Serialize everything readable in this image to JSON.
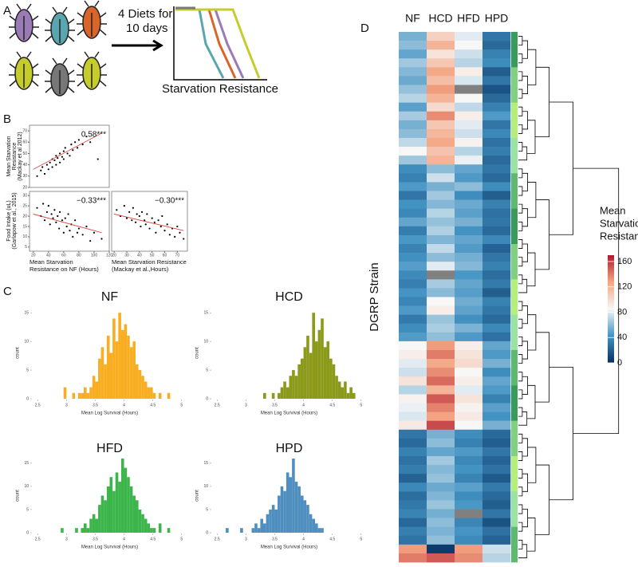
{
  "panel_labels": [
    "A",
    "B",
    "C",
    "D"
  ],
  "panel_a": {
    "diet_text": [
      "4 Diets for",
      "10 days"
    ],
    "curve_label": "Starvation Resistance"
  },
  "chart_data": [
    {
      "type": "scatter",
      "ylabel": [
        "Mean Starvation",
        "Resistance",
        "(Mackay et al 2012)"
      ],
      "annotation": "0.58***",
      "xlim": [
        15,
        120
      ],
      "ylim": [
        20,
        75
      ],
      "yticks": [
        20,
        30,
        40,
        50,
        60,
        70
      ],
      "x": [
        25,
        30,
        32,
        35,
        38,
        40,
        42,
        45,
        45,
        48,
        50,
        50,
        52,
        55,
        55,
        58,
        60,
        60,
        62,
        65,
        68,
        70,
        72,
        75,
        78,
        80,
        85,
        90,
        95,
        105
      ],
      "y": [
        30,
        35,
        38,
        32,
        40,
        36,
        42,
        45,
        38,
        44,
        40,
        48,
        46,
        50,
        42,
        47,
        52,
        45,
        55,
        50,
        48,
        58,
        53,
        60,
        55,
        62,
        58,
        65,
        60,
        45
      ],
      "fit": {
        "x": [
          20,
          110
        ],
        "y": [
          36,
          68
        ]
      },
      "color": "#000000",
      "fit_color": "#e0302a"
    },
    {
      "type": "scatter",
      "ylabel": [
        "Food Intake (uL)",
        "(Garlapow et al., 2015)"
      ],
      "xlabel": [
        "Mean Starvation",
        "Resistance on NF (Hours)"
      ],
      "annotation": "−0.33***",
      "xlim": [
        15,
        120
      ],
      "ylim": [
        3,
        32
      ],
      "yticks": [
        5,
        10,
        15,
        20,
        25,
        30
      ],
      "xticks": [
        20,
        40,
        60,
        80,
        100,
        120
      ],
      "x": [
        25,
        30,
        33,
        35,
        38,
        40,
        42,
        44,
        46,
        48,
        50,
        52,
        54,
        55,
        58,
        60,
        62,
        64,
        66,
        68,
        70,
        72,
        75,
        78,
        80,
        85,
        90,
        95,
        100,
        110
      ],
      "y": [
        24,
        20,
        26,
        18,
        22,
        25,
        16,
        21,
        19,
        23,
        17,
        20,
        14,
        22,
        18,
        12,
        19,
        15,
        21,
        13,
        16,
        10,
        18,
        12,
        14,
        11,
        15,
        8,
        12,
        9
      ],
      "fit": {
        "x": [
          20,
          110
        ],
        "y": [
          21,
          12
        ]
      },
      "color": "#000000",
      "fit_color": "#e0302a"
    },
    {
      "type": "scatter",
      "xlabel": [
        "Mean Starvation Resistance",
        "(Mackay et al.,Hours)"
      ],
      "annotation": "−0.30***",
      "xlim": [
        18,
        78
      ],
      "ylim": [
        3,
        32
      ],
      "xticks": [
        20,
        30,
        40,
        50,
        60,
        70
      ],
      "x": [
        22,
        25,
        28,
        30,
        32,
        34,
        35,
        37,
        38,
        40,
        41,
        42,
        44,
        45,
        46,
        48,
        50,
        52,
        53,
        55,
        57,
        58,
        60,
        62,
        64,
        66,
        68,
        70,
        72,
        75
      ],
      "y": [
        23,
        20,
        25,
        19,
        22,
        18,
        24,
        17,
        21,
        20,
        15,
        22,
        18,
        16,
        21,
        14,
        19,
        17,
        12,
        18,
        15,
        20,
        13,
        16,
        11,
        14,
        10,
        15,
        12,
        9
      ],
      "fit": {
        "x": [
          20,
          75
        ],
        "y": [
          21,
          13
        ]
      },
      "color": "#000000",
      "fit_color": "#e0302a"
    },
    {
      "type": "histogram",
      "title": "NF",
      "xlabel": "Mean Log Survival (Hours)",
      "ylabel": "count",
      "color": "#f9ae22",
      "xlim": [
        2.4,
        5.1
      ],
      "ylim": [
        0,
        16
      ],
      "xticks": [
        2.5,
        3.0,
        3.5,
        4.0,
        4.5,
        5.0
      ],
      "yticks": [
        0,
        5,
        10,
        15
      ],
      "bins": [
        2.5,
        2.55,
        2.6,
        2.65,
        2.7,
        2.75,
        2.8,
        2.85,
        2.9,
        2.95,
        3.0,
        3.05,
        3.1,
        3.15,
        3.2,
        3.25,
        3.3,
        3.35,
        3.4,
        3.45,
        3.5,
        3.55,
        3.6,
        3.65,
        3.7,
        3.75,
        3.8,
        3.85,
        3.9,
        3.95,
        4.0,
        4.05,
        4.1,
        4.15,
        4.2,
        4.25,
        4.3,
        4.35,
        4.4,
        4.45,
        4.5,
        4.55,
        4.6,
        4.65,
        4.7,
        4.75,
        4.8,
        4.85,
        4.9,
        4.95,
        5.0
      ],
      "counts": [
        0,
        0,
        0,
        0,
        0,
        0,
        0,
        0,
        0,
        2,
        0,
        0,
        1,
        0,
        1,
        1,
        2,
        1,
        2,
        4,
        3,
        7,
        9,
        6,
        11,
        8,
        14,
        10,
        15,
        12,
        13,
        11,
        9,
        10,
        6,
        5,
        4,
        3,
        2,
        2,
        1,
        0,
        1,
        0,
        0,
        1,
        0,
        0,
        0,
        0
      ]
    },
    {
      "type": "histogram",
      "title": "HCD",
      "xlabel": "Mean Log Survival (Hours)",
      "ylabel": "count",
      "color": "#8c9a1a",
      "xlim": [
        2.4,
        5.1
      ],
      "ylim": [
        0,
        16
      ],
      "xticks": [
        2.5,
        3.0,
        3.5,
        4.0,
        4.5,
        5.0
      ],
      "yticks": [
        0,
        5,
        10,
        15
      ],
      "bins": [
        2.5,
        2.55,
        2.6,
        2.65,
        2.7,
        2.75,
        2.8,
        2.85,
        2.9,
        2.95,
        3.0,
        3.05,
        3.1,
        3.15,
        3.2,
        3.25,
        3.3,
        3.35,
        3.4,
        3.45,
        3.5,
        3.55,
        3.6,
        3.65,
        3.7,
        3.75,
        3.8,
        3.85,
        3.9,
        3.95,
        4.0,
        4.05,
        4.1,
        4.15,
        4.2,
        4.25,
        4.3,
        4.35,
        4.4,
        4.45,
        4.5,
        4.55,
        4.6,
        4.65,
        4.7,
        4.75,
        4.8,
        4.85,
        4.9,
        4.95,
        5.0
      ],
      "counts": [
        0,
        0,
        0,
        0,
        0,
        0,
        0,
        0,
        0,
        0,
        0,
        0,
        0,
        0,
        0,
        0,
        1,
        0,
        0,
        1,
        0,
        1,
        2,
        3,
        2,
        4,
        5,
        4,
        6,
        7,
        9,
        11,
        8,
        15,
        10,
        12,
        14,
        9,
        10,
        7,
        6,
        4,
        3,
        2,
        3,
        1,
        2,
        1,
        0,
        0
      ]
    },
    {
      "type": "histogram",
      "title": "HFD",
      "xlabel": "Mean Log Survival (Hours)",
      "ylabel": "count",
      "color": "#3cb54a",
      "xlim": [
        2.4,
        5.1
      ],
      "ylim": [
        0,
        16
      ],
      "xticks": [
        2.5,
        3.0,
        3.5,
        4.0,
        4.5,
        5.0
      ],
      "yticks": [
        0,
        5,
        10,
        15
      ],
      "bins": [
        2.5,
        2.55,
        2.6,
        2.65,
        2.7,
        2.75,
        2.8,
        2.85,
        2.9,
        2.95,
        3.0,
        3.05,
        3.1,
        3.15,
        3.2,
        3.25,
        3.3,
        3.35,
        3.4,
        3.45,
        3.5,
        3.55,
        3.6,
        3.65,
        3.7,
        3.75,
        3.8,
        3.85,
        3.9,
        3.95,
        4.0,
        4.05,
        4.1,
        4.15,
        4.2,
        4.25,
        4.3,
        4.35,
        4.4,
        4.45,
        4.5,
        4.55,
        4.6,
        4.65,
        4.7,
        4.75,
        4.8,
        4.85,
        4.9,
        4.95,
        5.0
      ],
      "counts": [
        0,
        0,
        0,
        0,
        0,
        0,
        0,
        0,
        1,
        0,
        0,
        0,
        0,
        1,
        0,
        1,
        2,
        1,
        3,
        4,
        3,
        6,
        8,
        7,
        10,
        12,
        9,
        13,
        11,
        16,
        14,
        12,
        10,
        8,
        7,
        5,
        4,
        3,
        2,
        1,
        1,
        0,
        2,
        0,
        0,
        1,
        0,
        0,
        0,
        0
      ]
    },
    {
      "type": "histogram",
      "title": "HPD",
      "xlabel": "Mean Log Survival (Hours)",
      "ylabel": "count",
      "color": "#4f8fbf",
      "xlim": [
        2.4,
        5.1
      ],
      "ylim": [
        0,
        16
      ],
      "xticks": [
        2.5,
        3.0,
        3.5,
        4.0,
        4.5,
        5.0
      ],
      "yticks": [
        0,
        5,
        10,
        15
      ],
      "bins": [
        2.5,
        2.55,
        2.6,
        2.65,
        2.7,
        2.75,
        2.8,
        2.85,
        2.9,
        2.95,
        3.0,
        3.05,
        3.1,
        3.15,
        3.2,
        3.25,
        3.3,
        3.35,
        3.4,
        3.45,
        3.5,
        3.55,
        3.6,
        3.65,
        3.7,
        3.75,
        3.8,
        3.85,
        3.9,
        3.95,
        4.0,
        4.05,
        4.1,
        4.15,
        4.2,
        4.25,
        4.3,
        4.35,
        4.4,
        4.45,
        4.5,
        4.55,
        4.6,
        4.65,
        4.7,
        4.75,
        4.8,
        4.85,
        4.9,
        4.95,
        5.0
      ],
      "counts": [
        0,
        0,
        0,
        1,
        0,
        0,
        0,
        0,
        1,
        0,
        0,
        0,
        1,
        2,
        1,
        3,
        2,
        4,
        5,
        6,
        5,
        8,
        10,
        9,
        13,
        12,
        16,
        11,
        10,
        8,
        7,
        6,
        4,
        3,
        2,
        1,
        1,
        0,
        0,
        0,
        0,
        0,
        0,
        0,
        0,
        0,
        0,
        0,
        0,
        0
      ]
    },
    {
      "type": "heatmap",
      "columns": [
        "NF",
        "HCD",
        "HFD",
        "HPD"
      ],
      "ylabel": "DGRP Strain",
      "legend_title": [
        "Mean",
        "Starvation",
        "Resistance"
      ],
      "clim": [
        0,
        170
      ],
      "cticks": [
        0,
        40,
        80,
        120,
        160
      ],
      "colormap": [
        "#053061",
        "#4393c3",
        "#f7f7f7",
        "#f4a582",
        "#b2182b"
      ],
      "null_color": "#808080",
      "rows": [
        [
          55,
          105,
          80,
          30
        ],
        [
          60,
          120,
          85,
          25
        ],
        [
          50,
          95,
          75,
          35
        ],
        [
          65,
          110,
          70,
          40
        ],
        [
          58,
          125,
          90,
          20
        ],
        [
          52,
          115,
          78,
          30
        ],
        [
          62,
          130,
          null,
          15
        ],
        [
          70,
          120,
          85,
          25
        ],
        [
          48,
          100,
          72,
          35
        ],
        [
          66,
          135,
          90,
          45
        ],
        [
          55,
          110,
          80,
          30
        ],
        [
          60,
          118,
          75,
          38
        ],
        [
          72,
          125,
          88,
          28
        ],
        [
          85,
          112,
          70,
          33
        ],
        [
          64,
          120,
          82,
          25
        ],
        [
          40,
          60,
          50,
          30
        ],
        [
          35,
          75,
          45,
          25
        ],
        [
          45,
          55,
          60,
          40
        ],
        [
          30,
          65,
          40,
          20
        ],
        [
          42,
          58,
          52,
          35
        ],
        [
          38,
          70,
          48,
          28
        ],
        [
          50,
          62,
          55,
          30
        ],
        [
          33,
          68,
          42,
          25
        ],
        [
          44,
          57,
          50,
          38
        ],
        [
          36,
          72,
          46,
          22
        ],
        [
          41,
          60,
          54,
          30
        ],
        [
          47,
          80,
          58,
          35
        ],
        [
          39,
          null,
          44,
          27
        ],
        [
          34,
          66,
          50,
          32
        ],
        [
          43,
          59,
          47,
          20
        ],
        [
          37,
          85,
          53,
          35
        ],
        [
          45,
          90,
          49,
          30
        ],
        [
          32,
          63,
          41,
          25
        ],
        [
          40,
          67,
          56,
          38
        ],
        [
          46,
          61,
          45,
          28
        ],
        [
          85,
          130,
          90,
          50
        ],
        [
          90,
          140,
          95,
          45
        ],
        [
          80,
          125,
          100,
          55
        ],
        [
          75,
          135,
          85,
          40
        ],
        [
          95,
          145,
          90,
          50
        ],
        [
          70,
          120,
          80,
          45
        ],
        [
          88,
          150,
          95,
          35
        ],
        [
          82,
          138,
          88,
          48
        ],
        [
          78,
          128,
          92,
          42
        ],
        [
          92,
          155,
          85,
          55
        ],
        [
          30,
          55,
          40,
          25
        ],
        [
          25,
          60,
          35,
          20
        ],
        [
          35,
          50,
          45,
          30
        ],
        [
          28,
          65,
          38,
          22
        ],
        [
          33,
          58,
          42,
          28
        ],
        [
          22,
          62,
          36,
          18
        ],
        [
          38,
          52,
          48,
          32
        ],
        [
          27,
          57,
          40,
          25
        ],
        [
          31,
          63,
          44,
          20
        ],
        [
          36,
          54,
          null,
          30
        ],
        [
          24,
          60,
          37,
          15
        ],
        [
          34,
          56,
          43,
          28
        ],
        [
          29,
          61,
          39,
          22
        ],
        [
          130,
          5,
          130,
          75
        ],
        [
          140,
          150,
          135,
          70
        ]
      ]
    }
  ]
}
